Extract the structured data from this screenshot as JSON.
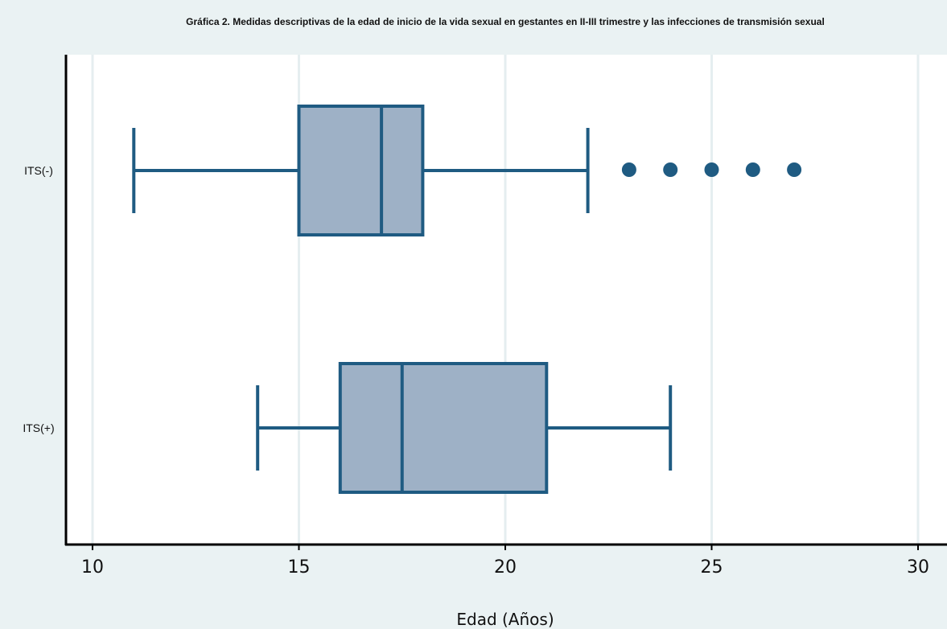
{
  "chart_data": {
    "type": "boxplot",
    "title": "Gráfica 2. Medidas descriptivas de la edad de inicio de la vida sexual en gestantes en II-III trimestre y las infecciones de transmisión sexual",
    "xlabel": "Edad (Años)",
    "ylabel": "",
    "orientation": "horizontal",
    "xlim": [
      10,
      30
    ],
    "xticks": [
      "10",
      "15",
      "20",
      "25",
      "30"
    ],
    "grid": true,
    "categories": [
      "ITS(-)",
      "ITS(+)"
    ],
    "boxes": [
      {
        "category": "ITS(-)",
        "whisker_low": 11,
        "q1": 15,
        "median": 17,
        "q3": 18,
        "whisker_high": 22,
        "outliers": [
          23,
          24,
          25,
          26,
          27
        ]
      },
      {
        "category": "ITS(+)",
        "whisker_low": 14,
        "q1": 16,
        "median": 17.5,
        "q3": 21,
        "whisker_high": 24,
        "outliers": []
      }
    ],
    "colors": {
      "box_fill": "#9eb1c6",
      "box_stroke": "#1f5b82",
      "outlier": "#1f5b82",
      "outer_background": "#eaf2f3",
      "plot_background": "#ffffff",
      "grid": "#e5eef0",
      "axis": "#000000"
    }
  }
}
